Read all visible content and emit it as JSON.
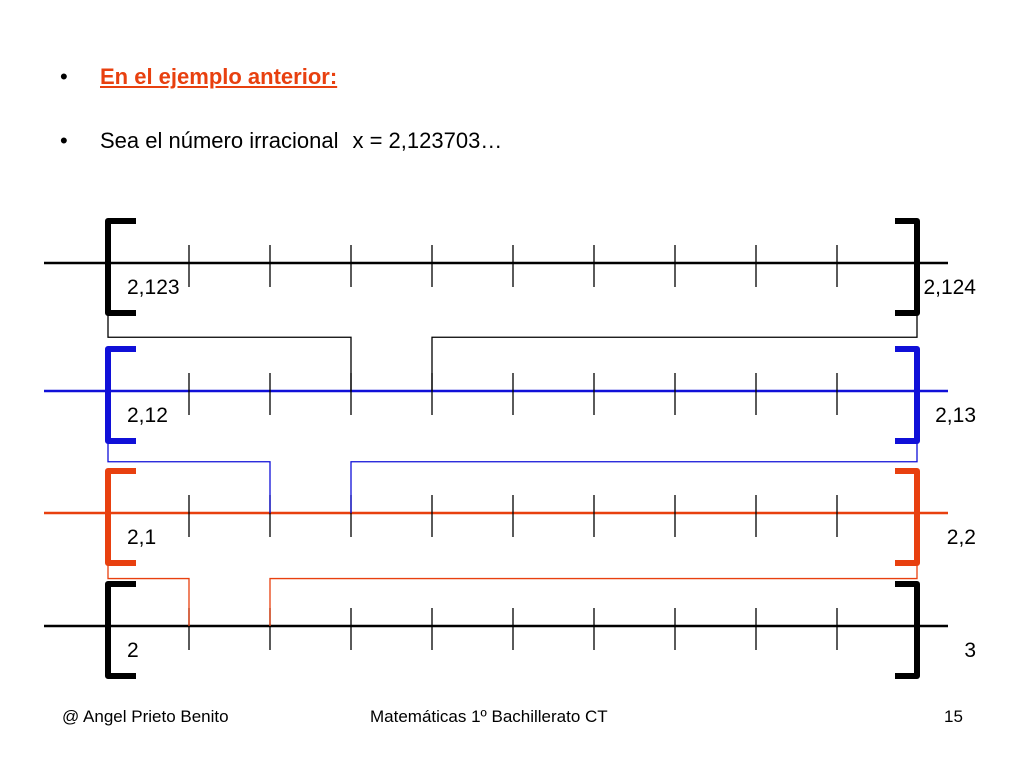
{
  "slide": {
    "heading": "En el ejemplo anterior:",
    "bullet": "•",
    "statement_prefix": "Sea el número irracional",
    "statement_value": "x = 2,123703…"
  },
  "number_lines": [
    {
      "left_label": "2,123",
      "right_label": "2,124",
      "color": "#000000"
    },
    {
      "left_label": "2,12",
      "right_label": "2,13",
      "color": "#1010d8"
    },
    {
      "left_label": "2,1",
      "right_label": "2,2",
      "color": "#e8400f"
    },
    {
      "left_label": "2",
      "right_label": "3",
      "color": "#000000"
    }
  ],
  "footer": {
    "author": "@ Angel Prieto Benito",
    "course": "Matemáticas  1º Bachillerato CT",
    "page": "15"
  }
}
